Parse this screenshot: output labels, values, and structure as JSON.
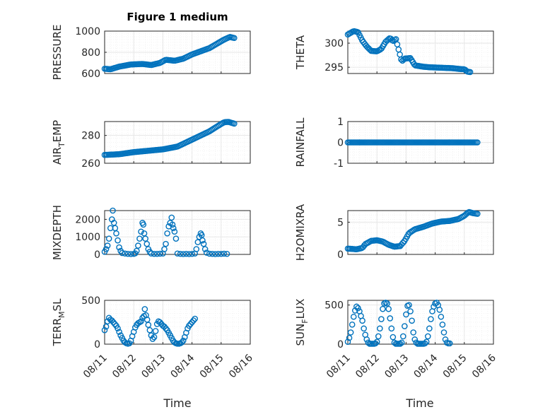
{
  "figure_title": "Figure 1 medium",
  "x_axis_label": "Time",
  "x_tick_labels": [
    "08/11",
    "08/12",
    "08/13",
    "08/14",
    "08/15",
    "08/16"
  ],
  "colors": {
    "marker": "#0072bd",
    "axis": "#262626",
    "grid": "#e6e6e6"
  },
  "chart_data": [
    {
      "type": "scatter",
      "ylabel": "PRESSURE",
      "ylim": [
        600,
        1000
      ],
      "yticks": [
        600,
        800,
        1000
      ],
      "grid": true,
      "title": "Figure 1 medium",
      "x_range_days": [
        0,
        5
      ],
      "anchors": [
        [
          0,
          645
        ],
        [
          0.2,
          640
        ],
        [
          0.5,
          665
        ],
        [
          0.9,
          685
        ],
        [
          1.3,
          690
        ],
        [
          1.6,
          680
        ],
        [
          1.9,
          700
        ],
        [
          2.1,
          730
        ],
        [
          2.4,
          720
        ],
        [
          2.7,
          740
        ],
        [
          3.0,
          780
        ],
        [
          3.3,
          810
        ],
        [
          3.6,
          840
        ],
        [
          3.85,
          880
        ],
        [
          4.1,
          920
        ],
        [
          4.3,
          945
        ],
        [
          4.45,
          935
        ]
      ]
    },
    {
      "type": "scatter",
      "ylabel": "THETA",
      "ylim": [
        293.7,
        302.5
      ],
      "yticks": [
        295,
        300
      ],
      "grid": true,
      "x_range_days": [
        0,
        5
      ],
      "anchors": [
        [
          0,
          301.8
        ],
        [
          0.2,
          302.5
        ],
        [
          0.35,
          302.3
        ],
        [
          0.5,
          300.5
        ],
        [
          0.65,
          299.3
        ],
        [
          0.8,
          298.4
        ],
        [
          1.0,
          298.3
        ],
        [
          1.15,
          298.8
        ],
        [
          1.3,
          300.3
        ],
        [
          1.45,
          301.1
        ],
        [
          1.55,
          300.4
        ],
        [
          1.65,
          300.9
        ],
        [
          1.75,
          298.5
        ],
        [
          1.85,
          296.2
        ],
        [
          1.95,
          296.8
        ],
        [
          2.15,
          296.9
        ],
        [
          2.3,
          295.4
        ],
        [
          2.6,
          295.1
        ],
        [
          2.8,
          295.0
        ],
        [
          3.2,
          294.9
        ],
        [
          3.6,
          294.8
        ],
        [
          3.9,
          294.6
        ],
        [
          4.0,
          294.6
        ],
        [
          4.1,
          294.1
        ],
        [
          4.2,
          294.0
        ]
      ]
    },
    {
      "type": "scatter",
      "ylabel": "AIR",
      "ylabel_sub": "T",
      "ylabel_rest": "EMP",
      "ylim": [
        260,
        290
      ],
      "yticks": [
        260,
        280
      ],
      "grid": true,
      "x_range_days": [
        0,
        5
      ],
      "anchors": [
        [
          0,
          266
        ],
        [
          0.5,
          266.5
        ],
        [
          1.0,
          268
        ],
        [
          1.5,
          269
        ],
        [
          2.0,
          270
        ],
        [
          2.5,
          272
        ],
        [
          3.0,
          277
        ],
        [
          3.3,
          280
        ],
        [
          3.6,
          283
        ],
        [
          3.9,
          287
        ],
        [
          4.1,
          289.5
        ],
        [
          4.25,
          289.8
        ],
        [
          4.45,
          288.5
        ]
      ]
    },
    {
      "type": "scatter",
      "ylabel": "RAINFALL",
      "ylim": [
        -1,
        1
      ],
      "yticks": [
        -1,
        0,
        1
      ],
      "grid": true,
      "x_range_days": [
        0,
        5
      ],
      "anchors": [
        [
          0,
          0
        ],
        [
          4.45,
          0
        ]
      ]
    },
    {
      "type": "scatter",
      "ylabel": "MIXDEPTH",
      "ylim": [
        0,
        2500
      ],
      "yticks": [
        0,
        1000,
        2000
      ],
      "grid": true,
      "x_range_days": [
        0,
        5
      ],
      "points": [
        [
          0.0,
          150
        ],
        [
          0.05,
          300
        ],
        [
          0.1,
          500
        ],
        [
          0.15,
          900
        ],
        [
          0.2,
          1500
        ],
        [
          0.25,
          2000
        ],
        [
          0.28,
          2500
        ],
        [
          0.32,
          1800
        ],
        [
          0.36,
          1500
        ],
        [
          0.4,
          1200
        ],
        [
          0.45,
          800
        ],
        [
          0.5,
          400
        ],
        [
          0.55,
          200
        ],
        [
          0.6,
          80
        ],
        [
          0.7,
          50
        ],
        [
          0.8,
          30
        ],
        [
          0.9,
          20
        ],
        [
          1.0,
          30
        ],
        [
          1.05,
          60
        ],
        [
          1.1,
          200
        ],
        [
          1.15,
          500
        ],
        [
          1.2,
          900
        ],
        [
          1.25,
          1300
        ],
        [
          1.3,
          1800
        ],
        [
          1.33,
          1700
        ],
        [
          1.36,
          1200
        ],
        [
          1.4,
          900
        ],
        [
          1.45,
          600
        ],
        [
          1.5,
          300
        ],
        [
          1.55,
          150
        ],
        [
          1.6,
          50
        ],
        [
          1.7,
          30
        ],
        [
          1.8,
          30
        ],
        [
          1.9,
          40
        ],
        [
          2.0,
          50
        ],
        [
          2.05,
          300
        ],
        [
          2.1,
          600
        ],
        [
          2.15,
          1200
        ],
        [
          2.2,
          1600
        ],
        [
          2.25,
          1800
        ],
        [
          2.3,
          2100
        ],
        [
          2.33,
          1700
        ],
        [
          2.36,
          1500
        ],
        [
          2.4,
          1300
        ],
        [
          2.45,
          900
        ],
        [
          2.5,
          50
        ],
        [
          2.6,
          30
        ],
        [
          2.7,
          20
        ],
        [
          2.8,
          30
        ],
        [
          2.9,
          20
        ],
        [
          3.0,
          30
        ],
        [
          3.1,
          50
        ],
        [
          3.15,
          300
        ],
        [
          3.2,
          700
        ],
        [
          3.25,
          1000
        ],
        [
          3.3,
          1200
        ],
        [
          3.33,
          1100
        ],
        [
          3.36,
          800
        ],
        [
          3.4,
          600
        ],
        [
          3.45,
          300
        ],
        [
          3.5,
          100
        ],
        [
          3.6,
          40
        ],
        [
          3.7,
          30
        ],
        [
          3.8,
          20
        ],
        [
          3.9,
          30
        ],
        [
          4.0,
          30
        ],
        [
          4.1,
          40
        ],
        [
          4.2,
          30
        ]
      ]
    },
    {
      "type": "scatter",
      "ylabel": "H2OMIXRA",
      "ylim": [
        0,
        6.8
      ],
      "yticks": [
        0,
        5
      ],
      "grid": true,
      "x_range_days": [
        0,
        5
      ],
      "anchors": [
        [
          0,
          0.9
        ],
        [
          0.3,
          0.8
        ],
        [
          0.5,
          1.0
        ],
        [
          0.6,
          1.6
        ],
        [
          0.8,
          2.1
        ],
        [
          1.0,
          2.2
        ],
        [
          1.2,
          2.0
        ],
        [
          1.4,
          1.5
        ],
        [
          1.6,
          1.2
        ],
        [
          1.8,
          1.3
        ],
        [
          1.95,
          2.1
        ],
        [
          2.1,
          3.3
        ],
        [
          2.3,
          3.9
        ],
        [
          2.6,
          4.3
        ],
        [
          2.9,
          4.8
        ],
        [
          3.2,
          5.1
        ],
        [
          3.5,
          5.2
        ],
        [
          3.8,
          5.5
        ],
        [
          4.0,
          6.0
        ],
        [
          4.15,
          6.6
        ],
        [
          4.3,
          6.4
        ],
        [
          4.45,
          6.3
        ]
      ]
    },
    {
      "type": "scatter",
      "ylabel": "TERR",
      "ylabel_sub": "M",
      "ylabel_rest": "SL",
      "ylim": [
        0,
        500
      ],
      "yticks": [
        0,
        500
      ],
      "grid": true,
      "x_range_days": [
        0,
        5
      ],
      "points": [
        [
          0.0,
          160
        ],
        [
          0.05,
          200
        ],
        [
          0.1,
          260
        ],
        [
          0.15,
          300
        ],
        [
          0.2,
          280
        ],
        [
          0.25,
          270
        ],
        [
          0.3,
          250
        ],
        [
          0.35,
          230
        ],
        [
          0.4,
          210
        ],
        [
          0.45,
          180
        ],
        [
          0.5,
          140
        ],
        [
          0.55,
          100
        ],
        [
          0.6,
          70
        ],
        [
          0.65,
          40
        ],
        [
          0.7,
          20
        ],
        [
          0.75,
          10
        ],
        [
          0.8,
          5
        ],
        [
          0.85,
          10
        ],
        [
          0.9,
          40
        ],
        [
          0.95,
          90
        ],
        [
          1.0,
          140
        ],
        [
          1.05,
          190
        ],
        [
          1.1,
          220
        ],
        [
          1.15,
          240
        ],
        [
          1.2,
          250
        ],
        [
          1.25,
          260
        ],
        [
          1.3,
          300
        ],
        [
          1.35,
          320
        ],
        [
          1.38,
          400
        ],
        [
          1.42,
          330
        ],
        [
          1.46,
          280
        ],
        [
          1.5,
          220
        ],
        [
          1.55,
          160
        ],
        [
          1.6,
          100
        ],
        [
          1.65,
          60
        ],
        [
          1.7,
          80
        ],
        [
          1.75,
          150
        ],
        [
          1.8,
          230
        ],
        [
          1.85,
          260
        ],
        [
          1.9,
          250
        ],
        [
          1.95,
          230
        ],
        [
          2.0,
          210
        ],
        [
          2.05,
          200
        ],
        [
          2.1,
          180
        ],
        [
          2.15,
          160
        ],
        [
          2.2,
          130
        ],
        [
          2.25,
          100
        ],
        [
          2.3,
          70
        ],
        [
          2.35,
          40
        ],
        [
          2.4,
          20
        ],
        [
          2.45,
          10
        ],
        [
          2.5,
          5
        ],
        [
          2.55,
          5
        ],
        [
          2.6,
          10
        ],
        [
          2.65,
          20
        ],
        [
          2.7,
          40
        ],
        [
          2.75,
          80
        ],
        [
          2.8,
          130
        ],
        [
          2.85,
          180
        ],
        [
          2.9,
          210
        ],
        [
          2.95,
          230
        ],
        [
          3.0,
          250
        ],
        [
          3.05,
          270
        ],
        [
          3.1,
          290
        ]
      ]
    },
    {
      "type": "scatter",
      "ylabel": "SUN",
      "ylabel_sub": "F",
      "ylabel_rest": "LUX",
      "ylim": [
        0,
        560
      ],
      "yticks": [
        0,
        500
      ],
      "grid": true,
      "x_range_days": [
        0,
        5
      ],
      "points": [
        [
          0.0,
          30
        ],
        [
          0.05,
          80
        ],
        [
          0.1,
          150
        ],
        [
          0.15,
          250
        ],
        [
          0.2,
          350
        ],
        [
          0.25,
          430
        ],
        [
          0.3,
          480
        ],
        [
          0.35,
          460
        ],
        [
          0.4,
          420
        ],
        [
          0.45,
          360
        ],
        [
          0.5,
          300
        ],
        [
          0.55,
          200
        ],
        [
          0.6,
          120
        ],
        [
          0.65,
          60
        ],
        [
          0.7,
          20
        ],
        [
          0.75,
          5
        ],
        [
          0.8,
          5
        ],
        [
          0.85,
          5
        ],
        [
          0.9,
          5
        ],
        [
          0.95,
          10
        ],
        [
          1.0,
          30
        ],
        [
          1.05,
          100
        ],
        [
          1.1,
          200
        ],
        [
          1.15,
          320
        ],
        [
          1.2,
          450
        ],
        [
          1.25,
          520
        ],
        [
          1.3,
          530
        ],
        [
          1.35,
          520
        ],
        [
          1.4,
          450
        ],
        [
          1.45,
          330
        ],
        [
          1.5,
          200
        ],
        [
          1.55,
          90
        ],
        [
          1.6,
          20
        ],
        [
          1.65,
          5
        ],
        [
          1.7,
          5
        ],
        [
          1.75,
          5
        ],
        [
          1.8,
          5
        ],
        [
          1.85,
          20
        ],
        [
          1.9,
          100
        ],
        [
          1.95,
          230
        ],
        [
          2.0,
          380
        ],
        [
          2.05,
          490
        ],
        [
          2.1,
          500
        ],
        [
          2.15,
          420
        ],
        [
          2.2,
          300
        ],
        [
          2.25,
          150
        ],
        [
          2.3,
          60
        ],
        [
          2.35,
          20
        ],
        [
          2.4,
          5
        ],
        [
          2.45,
          5
        ],
        [
          2.5,
          5
        ],
        [
          2.55,
          5
        ],
        [
          2.6,
          5
        ],
        [
          2.65,
          10
        ],
        [
          2.7,
          30
        ],
        [
          2.75,
          100
        ],
        [
          2.8,
          200
        ],
        [
          2.85,
          320
        ],
        [
          2.9,
          420
        ],
        [
          2.95,
          480
        ],
        [
          3.0,
          520
        ],
        [
          3.05,
          530
        ],
        [
          3.1,
          500
        ],
        [
          3.15,
          440
        ],
        [
          3.2,
          350
        ],
        [
          3.25,
          250
        ],
        [
          3.3,
          150
        ],
        [
          3.35,
          60
        ],
        [
          3.4,
          20
        ],
        [
          3.45,
          10
        ],
        [
          3.5,
          10
        ]
      ]
    }
  ]
}
